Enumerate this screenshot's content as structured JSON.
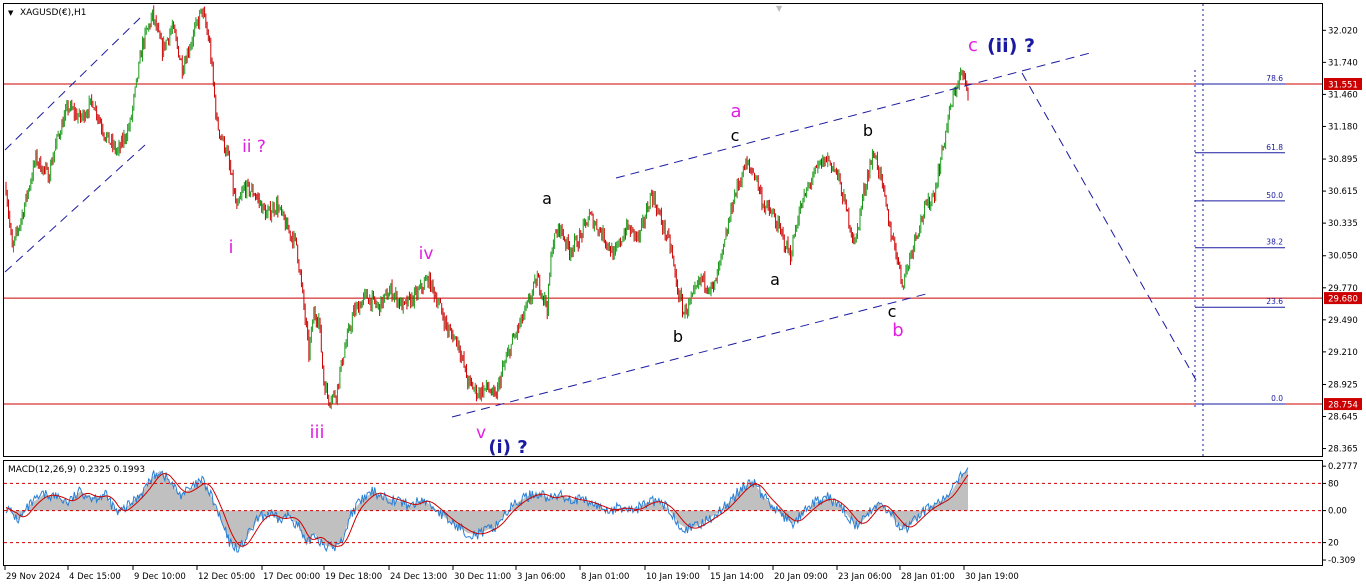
{
  "chart_data": {
    "type": "candlestick",
    "symbol_label": "XAGUSD(€),H1",
    "price_axis_ticks": [
      "32.020",
      "31.740",
      "31.460",
      "31.180",
      "30.895",
      "30.615",
      "30.335",
      "30.050",
      "29.770",
      "29.490",
      "29.210",
      "28.925",
      "28.645",
      "28.365"
    ],
    "price_axis_values": [
      32.02,
      31.74,
      31.46,
      31.18,
      30.895,
      30.615,
      30.335,
      30.05,
      29.77,
      29.49,
      29.21,
      28.925,
      28.645,
      28.365
    ],
    "ylim": [
      28.3,
      32.25
    ],
    "time_axis_labels": [
      "29 Nov 2024",
      "4 Dec 15:00",
      "9 Dec 10:00",
      "12 Dec 05:00",
      "17 Dec 00:00",
      "19 Dec 18:00",
      "24 Dec 13:00",
      "30 Dec 11:00",
      "3 Jan 06:00",
      "8 Jan 01:00",
      "10 Jan 19:00",
      "15 Jan 14:00",
      "20 Jan 09:00",
      "23 Jan 06:00",
      "28 Jan 01:00",
      "30 Jan 19:00"
    ],
    "horizontal_levels": [
      {
        "price": 31.551,
        "label": "31.551",
        "color": "#cc0000"
      },
      {
        "price": 29.68,
        "label": "29.680",
        "color": "#cc0000"
      },
      {
        "price": 28.754,
        "label": "28.754",
        "color": "#cc0000"
      }
    ],
    "fibonacci": [
      {
        "label": "78.6",
        "price": 31.551
      },
      {
        "label": "61.8",
        "price": 30.95
      },
      {
        "label": "50.0",
        "price": 30.53
      },
      {
        "label": "38.2",
        "price": 30.12
      },
      {
        "label": "23.6",
        "price": 29.6
      },
      {
        "label": "0.0",
        "price": 28.754
      }
    ],
    "price_path": [
      {
        "i": 0,
        "p": 30.65
      },
      {
        "i": 5,
        "p": 30.1
      },
      {
        "i": 14,
        "p": 30.45
      },
      {
        "i": 24,
        "p": 30.9
      },
      {
        "i": 34,
        "p": 30.75
      },
      {
        "i": 42,
        "p": 31.1
      },
      {
        "i": 50,
        "p": 31.35
      },
      {
        "i": 60,
        "p": 31.25
      },
      {
        "i": 70,
        "p": 31.4
      },
      {
        "i": 80,
        "p": 31.1
      },
      {
        "i": 90,
        "p": 30.95
      },
      {
        "i": 100,
        "p": 31.2
      },
      {
        "i": 110,
        "p": 31.9
      },
      {
        "i": 118,
        "p": 32.15
      },
      {
        "i": 126,
        "p": 31.85
      },
      {
        "i": 134,
        "p": 32.05
      },
      {
        "i": 142,
        "p": 31.7
      },
      {
        "i": 150,
        "p": 31.95
      },
      {
        "i": 158,
        "p": 32.2
      },
      {
        "i": 164,
        "p": 31.9
      },
      {
        "i": 170,
        "p": 31.2
      },
      {
        "i": 178,
        "p": 30.95
      },
      {
        "i": 186,
        "p": 30.45
      },
      {
        "i": 192,
        "p": 30.65
      },
      {
        "i": 200,
        "p": 30.6
      },
      {
        "i": 210,
        "p": 30.4
      },
      {
        "i": 218,
        "p": 30.5
      },
      {
        "i": 226,
        "p": 30.3
      },
      {
        "i": 234,
        "p": 30.15
      },
      {
        "i": 240,
        "p": 29.6
      },
      {
        "i": 244,
        "p": 29.2
      },
      {
        "i": 248,
        "p": 29.55
      },
      {
        "i": 252,
        "p": 29.5
      },
      {
        "i": 256,
        "p": 28.95
      },
      {
        "i": 260,
        "p": 28.8
      },
      {
        "i": 266,
        "p": 28.85
      },
      {
        "i": 272,
        "p": 29.2
      },
      {
        "i": 280,
        "p": 29.55
      },
      {
        "i": 290,
        "p": 29.7
      },
      {
        "i": 300,
        "p": 29.6
      },
      {
        "i": 310,
        "p": 29.75
      },
      {
        "i": 320,
        "p": 29.6
      },
      {
        "i": 330,
        "p": 29.7
      },
      {
        "i": 340,
        "p": 29.85
      },
      {
        "i": 348,
        "p": 29.65
      },
      {
        "i": 356,
        "p": 29.4
      },
      {
        "i": 364,
        "p": 29.3
      },
      {
        "i": 372,
        "p": 28.95
      },
      {
        "i": 380,
        "p": 28.85
      },
      {
        "i": 388,
        "p": 28.9
      },
      {
        "i": 394,
        "p": 28.8
      },
      {
        "i": 400,
        "p": 29.05
      },
      {
        "i": 408,
        "p": 29.3
      },
      {
        "i": 418,
        "p": 29.55
      },
      {
        "i": 428,
        "p": 29.85
      },
      {
        "i": 436,
        "p": 29.6
      },
      {
        "i": 440,
        "p": 30.15
      },
      {
        "i": 446,
        "p": 30.3
      },
      {
        "i": 454,
        "p": 30.1
      },
      {
        "i": 462,
        "p": 30.2
      },
      {
        "i": 470,
        "p": 30.4
      },
      {
        "i": 480,
        "p": 30.25
      },
      {
        "i": 490,
        "p": 30.05
      },
      {
        "i": 500,
        "p": 30.3
      },
      {
        "i": 510,
        "p": 30.2
      },
      {
        "i": 520,
        "p": 30.6
      },
      {
        "i": 528,
        "p": 30.35
      },
      {
        "i": 536,
        "p": 30.1
      },
      {
        "i": 540,
        "p": 29.8
      },
      {
        "i": 546,
        "p": 29.55
      },
      {
        "i": 552,
        "p": 29.65
      },
      {
        "i": 560,
        "p": 29.85
      },
      {
        "i": 570,
        "p": 29.75
      },
      {
        "i": 578,
        "p": 30.1
      },
      {
        "i": 586,
        "p": 30.55
      },
      {
        "i": 596,
        "p": 30.85
      },
      {
        "i": 604,
        "p": 30.75
      },
      {
        "i": 610,
        "p": 30.5
      },
      {
        "i": 618,
        "p": 30.4
      },
      {
        "i": 626,
        "p": 30.2
      },
      {
        "i": 632,
        "p": 30.05
      },
      {
        "i": 638,
        "p": 30.4
      },
      {
        "i": 648,
        "p": 30.7
      },
      {
        "i": 656,
        "p": 30.85
      },
      {
        "i": 662,
        "p": 30.9
      },
      {
        "i": 670,
        "p": 30.75
      },
      {
        "i": 678,
        "p": 30.4
      },
      {
        "i": 684,
        "p": 30.15
      },
      {
        "i": 690,
        "p": 30.55
      },
      {
        "i": 696,
        "p": 30.85
      },
      {
        "i": 700,
        "p": 30.95
      },
      {
        "i": 706,
        "p": 30.65
      },
      {
        "i": 712,
        "p": 30.3
      },
      {
        "i": 718,
        "p": 30.05
      },
      {
        "i": 722,
        "p": 29.8
      },
      {
        "i": 726,
        "p": 29.95
      },
      {
        "i": 732,
        "p": 30.2
      },
      {
        "i": 740,
        "p": 30.45
      },
      {
        "i": 748,
        "p": 30.6
      },
      {
        "i": 754,
        "p": 30.95
      },
      {
        "i": 760,
        "p": 31.3
      },
      {
        "i": 766,
        "p": 31.55
      },
      {
        "i": 770,
        "p": 31.65
      },
      {
        "i": 774,
        "p": 31.5
      }
    ],
    "wave_labels": [
      {
        "text": "ii ?",
        "color": "#e020e0"
      },
      {
        "text": "i",
        "color": "#e020e0"
      },
      {
        "text": "iv",
        "color": "#e020e0"
      },
      {
        "text": "iii",
        "color": "#e020e0"
      },
      {
        "text": "v",
        "color": "#e020e0"
      },
      {
        "text": "(i) ?",
        "color": "#1a1aa0"
      },
      {
        "text": "a",
        "color": "#000000"
      },
      {
        "text": "b",
        "color": "#000000"
      },
      {
        "text": "a",
        "color": "#e020e0"
      },
      {
        "text": "c",
        "color": "#000000"
      },
      {
        "text": "a",
        "color": "#000000"
      },
      {
        "text": "b",
        "color": "#000000"
      },
      {
        "text": "c",
        "color": "#000000"
      },
      {
        "text": "b",
        "color": "#e020e0"
      },
      {
        "text": "c",
        "color": "#e020e0"
      },
      {
        "text": "(ii) ?",
        "color": "#1a1aa0"
      }
    ],
    "macd": {
      "label": "MACD(12,26,9) 0.2325 0.1993",
      "axis_ticks": [
        "0.2777",
        "80",
        "0.00",
        "20",
        "-0.309"
      ],
      "axis_values": [
        0.2777,
        0.17,
        0.0,
        -0.2,
        -0.309
      ],
      "ylim": [
        -0.34,
        0.31
      ],
      "level_lines": [
        0.17,
        0.0,
        -0.2
      ],
      "path": [
        {
          "i": 0,
          "v": 0.02
        },
        {
          "i": 10,
          "v": -0.06
        },
        {
          "i": 20,
          "v": 0.04
        },
        {
          "i": 30,
          "v": 0.1
        },
        {
          "i": 40,
          "v": 0.09
        },
        {
          "i": 50,
          "v": 0.05
        },
        {
          "i": 60,
          "v": 0.12
        },
        {
          "i": 70,
          "v": 0.08
        },
        {
          "i": 80,
          "v": 0.1
        },
        {
          "i": 90,
          "v": -0.02
        },
        {
          "i": 100,
          "v": 0.04
        },
        {
          "i": 110,
          "v": 0.12
        },
        {
          "i": 118,
          "v": 0.21
        },
        {
          "i": 124,
          "v": 0.25
        },
        {
          "i": 132,
          "v": 0.18
        },
        {
          "i": 140,
          "v": 0.1
        },
        {
          "i": 150,
          "v": 0.14
        },
        {
          "i": 158,
          "v": 0.19
        },
        {
          "i": 166,
          "v": 0.08
        },
        {
          "i": 172,
          "v": -0.04
        },
        {
          "i": 180,
          "v": -0.2
        },
        {
          "i": 188,
          "v": -0.24
        },
        {
          "i": 196,
          "v": -0.14
        },
        {
          "i": 204,
          "v": -0.04
        },
        {
          "i": 212,
          "v": -0.02
        },
        {
          "i": 220,
          "v": -0.06
        },
        {
          "i": 228,
          "v": -0.03
        },
        {
          "i": 236,
          "v": -0.1
        },
        {
          "i": 242,
          "v": -0.22
        },
        {
          "i": 248,
          "v": -0.14
        },
        {
          "i": 252,
          "v": -0.18
        },
        {
          "i": 258,
          "v": -0.22
        },
        {
          "i": 264,
          "v": -0.23
        },
        {
          "i": 270,
          "v": -0.2
        },
        {
          "i": 278,
          "v": -0.02
        },
        {
          "i": 286,
          "v": 0.06
        },
        {
          "i": 296,
          "v": 0.12
        },
        {
          "i": 306,
          "v": 0.08
        },
        {
          "i": 316,
          "v": 0.06
        },
        {
          "i": 326,
          "v": 0.03
        },
        {
          "i": 336,
          "v": 0.07
        },
        {
          "i": 346,
          "v": 0.01
        },
        {
          "i": 356,
          "v": -0.06
        },
        {
          "i": 364,
          "v": -0.1
        },
        {
          "i": 372,
          "v": -0.14
        },
        {
          "i": 380,
          "v": -0.15
        },
        {
          "i": 388,
          "v": -0.12
        },
        {
          "i": 394,
          "v": -0.1
        },
        {
          "i": 402,
          "v": -0.02
        },
        {
          "i": 410,
          "v": 0.04
        },
        {
          "i": 420,
          "v": 0.09
        },
        {
          "i": 430,
          "v": 0.11
        },
        {
          "i": 438,
          "v": 0.07
        },
        {
          "i": 446,
          "v": 0.1
        },
        {
          "i": 456,
          "v": 0.07
        },
        {
          "i": 466,
          "v": 0.06
        },
        {
          "i": 476,
          "v": 0.03
        },
        {
          "i": 486,
          "v": 0.0
        },
        {
          "i": 496,
          "v": 0.02
        },
        {
          "i": 506,
          "v": 0.0
        },
        {
          "i": 516,
          "v": 0.05
        },
        {
          "i": 524,
          "v": 0.06
        },
        {
          "i": 534,
          "v": 0.01
        },
        {
          "i": 542,
          "v": -0.08
        },
        {
          "i": 550,
          "v": -0.12
        },
        {
          "i": 558,
          "v": -0.09
        },
        {
          "i": 566,
          "v": -0.05
        },
        {
          "i": 576,
          "v": 0.0
        },
        {
          "i": 586,
          "v": 0.08
        },
        {
          "i": 594,
          "v": 0.15
        },
        {
          "i": 602,
          "v": 0.18
        },
        {
          "i": 610,
          "v": 0.09
        },
        {
          "i": 618,
          "v": 0.03
        },
        {
          "i": 626,
          "v": -0.04
        },
        {
          "i": 634,
          "v": -0.08
        },
        {
          "i": 642,
          "v": -0.02
        },
        {
          "i": 652,
          "v": 0.05
        },
        {
          "i": 662,
          "v": 0.08
        },
        {
          "i": 672,
          "v": 0.03
        },
        {
          "i": 680,
          "v": -0.05
        },
        {
          "i": 686,
          "v": -0.1
        },
        {
          "i": 694,
          "v": -0.03
        },
        {
          "i": 702,
          "v": 0.05
        },
        {
          "i": 710,
          "v": 0.0
        },
        {
          "i": 718,
          "v": -0.08
        },
        {
          "i": 724,
          "v": -0.12
        },
        {
          "i": 732,
          "v": -0.06
        },
        {
          "i": 740,
          "v": 0.0
        },
        {
          "i": 748,
          "v": 0.04
        },
        {
          "i": 756,
          "v": 0.07
        },
        {
          "i": 762,
          "v": 0.12
        },
        {
          "i": 768,
          "v": 0.2
        },
        {
          "i": 774,
          "v": 0.26
        }
      ]
    }
  }
}
